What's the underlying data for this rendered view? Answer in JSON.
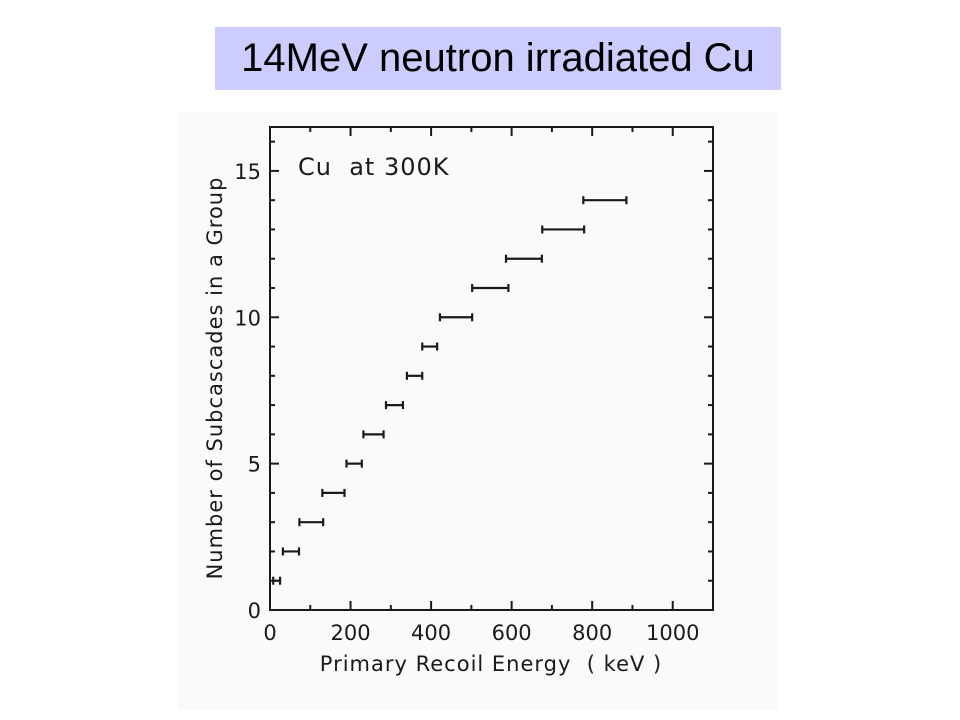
{
  "slide": {
    "title": "14MeV neutron irradiated Cu",
    "title_bg": "#ccccff"
  },
  "chart_data": {
    "type": "scatter",
    "title": "",
    "annotation": "Cu  at 300K",
    "xlabel": "Primary Recoil Energy  ( keV )",
    "ylabel": "Number of Subcascades in a Group",
    "xlim": [
      0,
      1100
    ],
    "ylim": [
      0,
      16.5
    ],
    "x_ticks": [
      0,
      200,
      400,
      600,
      800,
      1000
    ],
    "y_ticks": [
      0,
      5,
      10,
      15
    ],
    "grid": false,
    "legend": "none",
    "series": [
      {
        "values": [
          {
            "y": 1,
            "x_min": 8,
            "x_max": 25
          },
          {
            "y": 2,
            "x_min": 32,
            "x_max": 72
          },
          {
            "y": 3,
            "x_min": 73,
            "x_max": 132
          },
          {
            "y": 4,
            "x_min": 130,
            "x_max": 185
          },
          {
            "y": 5,
            "x_min": 190,
            "x_max": 228
          },
          {
            "y": 6,
            "x_min": 232,
            "x_max": 282
          },
          {
            "y": 7,
            "x_min": 288,
            "x_max": 330
          },
          {
            "y": 8,
            "x_min": 340,
            "x_max": 378
          },
          {
            "y": 9,
            "x_min": 378,
            "x_max": 415
          },
          {
            "y": 10,
            "x_min": 422,
            "x_max": 502
          },
          {
            "y": 11,
            "x_min": 502,
            "x_max": 592
          },
          {
            "y": 12,
            "x_min": 586,
            "x_max": 675
          },
          {
            "y": 13,
            "x_min": 676,
            "x_max": 780
          },
          {
            "y": 14,
            "x_min": 778,
            "x_max": 885
          }
        ]
      }
    ]
  }
}
